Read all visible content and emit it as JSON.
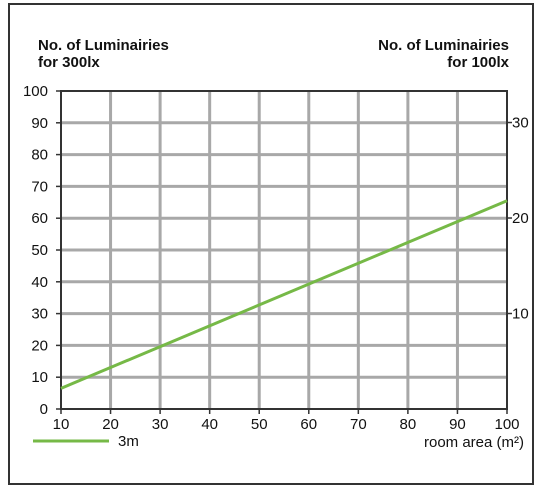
{
  "chart_data": {
    "type": "line",
    "left_axis_title": [
      "No. of Luminairies",
      "for 300lx"
    ],
    "right_axis_title": [
      "No. of Luminairies",
      "for 100lx"
    ],
    "xlabel": "room area (m²)",
    "x_ticks": [
      "10",
      "20",
      "30",
      "40",
      "50",
      "60",
      "70",
      "80",
      "90",
      "100"
    ],
    "y_left_ticks": [
      "0",
      "10",
      "20",
      "30",
      "40",
      "50",
      "60",
      "70",
      "80",
      "90",
      "100"
    ],
    "y_right_ticks": [
      "10",
      "20",
      "30"
    ],
    "xlim": [
      10,
      100
    ],
    "ylim_left": [
      0,
      100
    ],
    "ylim_right": [
      0,
      33.3
    ],
    "grid": true,
    "legend_position": "bottom-left",
    "series": [
      {
        "name": "3m",
        "x": [
          10,
          100
        ],
        "y": [
          6.5,
          65.5
        ],
        "color": "#76b947"
      }
    ],
    "axis_color": "#333333",
    "grid_color": "#a8a8a8"
  }
}
